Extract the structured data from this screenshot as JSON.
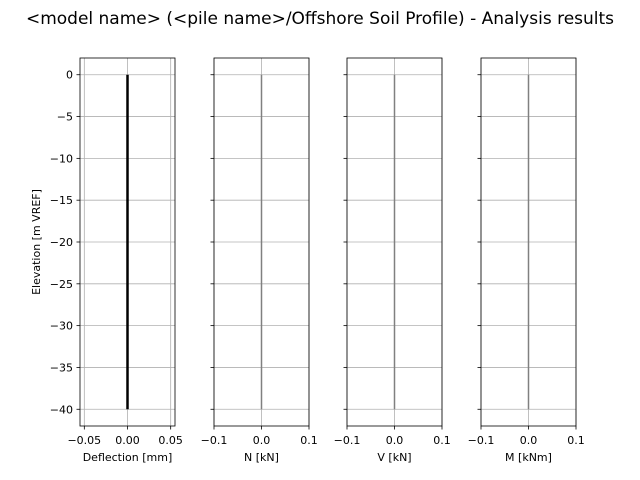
{
  "chart_data": {
    "title": "<model name> (<pile name>/Offshore Soil Profile) - Analysis results",
    "ylabel": "Elevation [m VREF]",
    "ylim": [
      -42,
      2
    ],
    "yticks": [
      0,
      -5,
      -10,
      -15,
      -20,
      -25,
      -30,
      -35,
      -40
    ],
    "ytick_labels": [
      "0",
      "−5",
      "−10",
      "−15",
      "−20",
      "−25",
      "−30",
      "−35",
      "−40"
    ],
    "grid": true,
    "panels": [
      {
        "type": "line",
        "xlabel": "Deflection [mm]",
        "xlim": [
          -0.055,
          0.055
        ],
        "xticks": [
          -0.05,
          0,
          0.05
        ],
        "xtick_labels": [
          "−0.05",
          "0.00",
          "0.05"
        ],
        "color": "#000000",
        "series": [
          {
            "x": [
              0,
              0
            ],
            "y": [
              0,
              -40
            ]
          }
        ]
      },
      {
        "type": "line",
        "xlabel": "N [kN]",
        "xlim": [
          -0.1,
          0.1
        ],
        "xticks": [
          -0.1,
          0,
          0.1
        ],
        "xtick_labels": [
          "−0.1",
          "0.0",
          "0.1"
        ],
        "color": "#808080",
        "series": [
          {
            "x": [
              0,
              0
            ],
            "y": [
              0,
              -40
            ]
          }
        ]
      },
      {
        "type": "line",
        "xlabel": "V [kN]",
        "xlim": [
          -0.1,
          0.1
        ],
        "xticks": [
          -0.1,
          0,
          0.1
        ],
        "xtick_labels": [
          "−0.1",
          "0.0",
          "0.1"
        ],
        "color": "#808080",
        "series": [
          {
            "x": [
              0,
              0
            ],
            "y": [
              0,
              -40
            ]
          }
        ]
      },
      {
        "type": "line",
        "xlabel": "M [kNm]",
        "xlim": [
          -0.1,
          0.1
        ],
        "xticks": [
          -0.1,
          0,
          0.1
        ],
        "xtick_labels": [
          "−0.1",
          "0.0",
          "0.1"
        ],
        "color": "#808080",
        "series": [
          {
            "x": [
              0,
              0
            ],
            "y": [
              0,
              -40
            ]
          }
        ]
      }
    ]
  }
}
